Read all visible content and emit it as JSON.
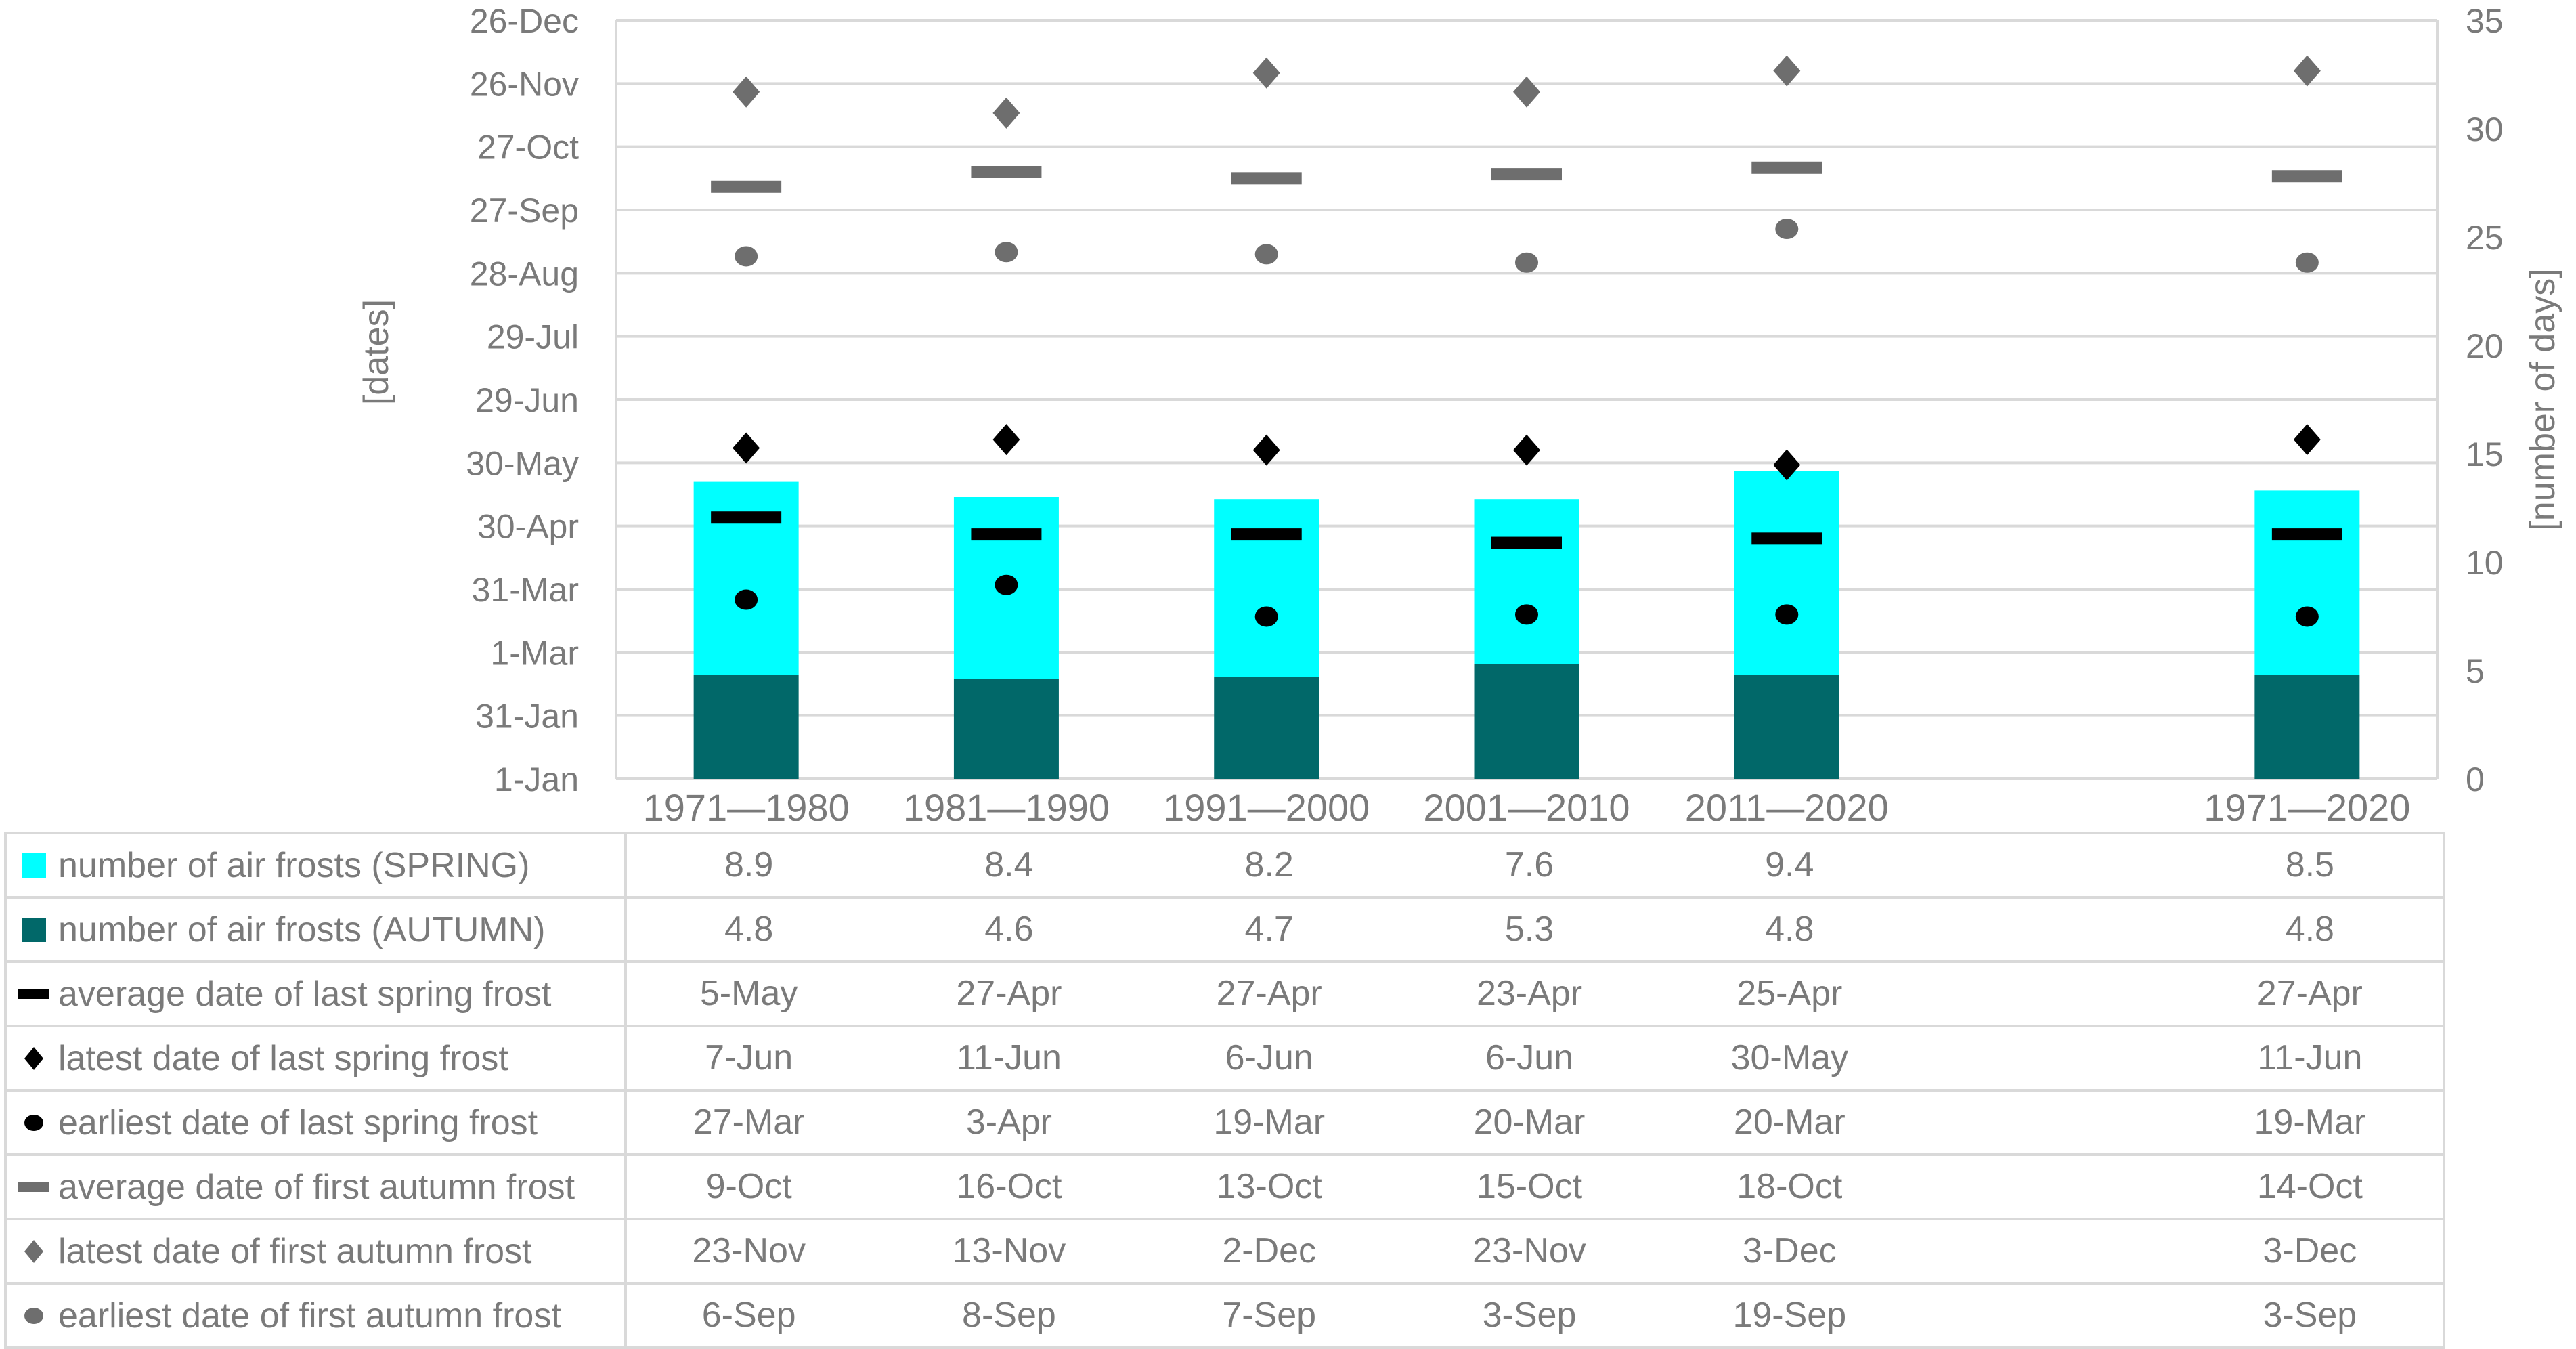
{
  "colors": {
    "spring": "#00FFFF",
    "autumn": "#016869",
    "black_marker": "#000000",
    "gray_marker": "#6E6E6E",
    "grid": "#D9D9D9",
    "text": "#7A7A7A"
  },
  "chart_data": {
    "type": "combo: stacked bar (number of days, right axis) + scatter date markers (left date axis)",
    "categories": [
      "1971—1980",
      "1981—1990",
      "1991—2000",
      "2001—2010",
      "2011—2020",
      "1971—2020"
    ],
    "bar_series": [
      {
        "name": "number of air frosts (SPRING)",
        "stack_position": "top",
        "color_key": "spring",
        "values": [
          8.9,
          8.4,
          8.2,
          7.6,
          9.4,
          8.5
        ]
      },
      {
        "name": "number of air frosts (AUTUMN)",
        "stack_position": "bottom",
        "color_key": "autumn",
        "values": [
          4.8,
          4.6,
          4.7,
          5.3,
          4.8,
          4.8
        ]
      }
    ],
    "marker_series": [
      {
        "name": "average date of last spring frost",
        "marker": "dash",
        "color_key": "black_marker",
        "dates": [
          "5-May",
          "27-Apr",
          "27-Apr",
          "23-Apr",
          "25-Apr",
          "27-Apr"
        ]
      },
      {
        "name": "latest date of last spring frost",
        "marker": "diamond",
        "color_key": "black_marker",
        "dates": [
          "7-Jun",
          "11-Jun",
          "6-Jun",
          "6-Jun",
          "30-May",
          "11-Jun"
        ]
      },
      {
        "name": "earliest date of last spring frost",
        "marker": "circle",
        "color_key": "black_marker",
        "dates": [
          "27-Mar",
          "3-Apr",
          "19-Mar",
          "20-Mar",
          "20-Mar",
          "19-Mar"
        ]
      },
      {
        "name": "average date of first autumn frost",
        "marker": "dash",
        "color_key": "gray_marker",
        "dates": [
          "9-Oct",
          "16-Oct",
          "13-Oct",
          "15-Oct",
          "18-Oct",
          "14-Oct"
        ]
      },
      {
        "name": "latest date of first autumn frost",
        "marker": "diamond",
        "color_key": "gray_marker",
        "dates": [
          "23-Nov",
          "13-Nov",
          "2-Dec",
          "23-Nov",
          "3-Dec",
          "3-Dec"
        ]
      },
      {
        "name": "earliest date of first autumn frost",
        "marker": "circle",
        "color_key": "gray_marker",
        "dates": [
          "6-Sep",
          "8-Sep",
          "7-Sep",
          "3-Sep",
          "19-Sep",
          "3-Sep"
        ]
      }
    ],
    "date_axis": {
      "title": "[dates]",
      "ticks": [
        "26-Dec",
        "26-Nov",
        "27-Oct",
        "27-Sep",
        "28-Aug",
        "29-Jul",
        "29-Jun",
        "30-May",
        "30-Apr",
        "31-Mar",
        "1-Mar",
        "31-Jan",
        "1-Jan"
      ],
      "interval_days": 30,
      "range_days": [
        1,
        361
      ]
    },
    "count_axis": {
      "title": "[number of days]",
      "ticks": [
        "35",
        "30",
        "25",
        "20",
        "15",
        "10",
        "5",
        "0"
      ],
      "min": 0,
      "max": 35
    },
    "grid": "horizontal, light gray",
    "legend_position": "left column of attached table"
  },
  "table": {
    "rows": [
      {
        "icon": "cyan-square-icon",
        "label": "number of air frosts (SPRING)",
        "values": [
          "8.9",
          "8.4",
          "8.2",
          "7.6",
          "9.4",
          "8.5"
        ]
      },
      {
        "icon": "teal-square-icon",
        "label": "number of air frosts (AUTUMN)",
        "values": [
          "4.8",
          "4.6",
          "4.7",
          "5.3",
          "4.8",
          "4.8"
        ]
      },
      {
        "icon": "black-dash-icon",
        "label": "average date of last spring frost",
        "values": [
          "5-May",
          "27-Apr",
          "27-Apr",
          "23-Apr",
          "25-Apr",
          "27-Apr"
        ]
      },
      {
        "icon": "black-diamond-icon",
        "label": "latest date of last spring frost",
        "values": [
          "7-Jun",
          "11-Jun",
          "6-Jun",
          "6-Jun",
          "30-May",
          "11-Jun"
        ]
      },
      {
        "icon": "black-circle-icon",
        "label": "earliest date of last spring frost",
        "values": [
          "27-Mar",
          "3-Apr",
          "19-Mar",
          "20-Mar",
          "20-Mar",
          "19-Mar"
        ]
      },
      {
        "icon": "gray-dash-icon",
        "label": "average date of first autumn frost",
        "values": [
          "9-Oct",
          "16-Oct",
          "13-Oct",
          "15-Oct",
          "18-Oct",
          "14-Oct"
        ]
      },
      {
        "icon": "gray-diamond-icon",
        "label": "latest date of first autumn frost",
        "values": [
          "23-Nov",
          "13-Nov",
          "2-Dec",
          "23-Nov",
          "3-Dec",
          "3-Dec"
        ]
      },
      {
        "icon": "gray-circle-icon",
        "label": "earliest date of first autumn frost",
        "values": [
          "6-Sep",
          "8-Sep",
          "7-Sep",
          "3-Sep",
          "19-Sep",
          "3-Sep"
        ]
      }
    ]
  }
}
